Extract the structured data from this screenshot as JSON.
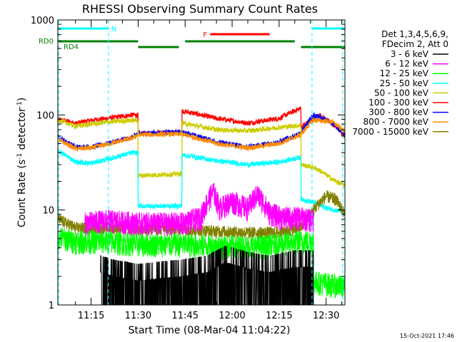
{
  "chart_data": {
    "type": "line",
    "title": "RHESSI Observing Summary Count Rates",
    "xlabel": "Start Time (08-Mar-04 11:04:22)",
    "ylabel_main": "Count Rate (s",
    "ylabel_sup1": "-1",
    "ylabel_mid": " detector",
    "ylabel_sup2": "-1",
    "ylabel_end": ")",
    "yscale": "log",
    "ylim": [
      1,
      1000
    ],
    "xlim_min": [
      4.37,
      96.0
    ],
    "x_ticks": [
      {
        "t": 15,
        "label": "11:15"
      },
      {
        "t": 30,
        "label": "11:30"
      },
      {
        "t": 45,
        "label": "11:45"
      },
      {
        "t": 60,
        "label": "12:00"
      },
      {
        "t": 75,
        "label": "12:15"
      },
      {
        "t": 90,
        "label": "12:30"
      }
    ],
    "y_ticks": [
      {
        "v": 1,
        "label": "1"
      },
      {
        "v": 10,
        "label": "10"
      },
      {
        "v": 100,
        "label": "100"
      },
      {
        "v": 1000,
        "label": "1000"
      }
    ],
    "legend": {
      "header1": "Det 1,3,4,5,6,9,",
      "header2": "FDecim 2, Att 0",
      "entries": [
        {
          "label": "3 - 6 keV",
          "color": "#000000"
        },
        {
          "label": "6 - 12 keV",
          "color": "#ff00ff"
        },
        {
          "label": "12 - 25 keV",
          "color": "#00ff00"
        },
        {
          "label": "25 - 50 keV",
          "color": "#00ffff"
        },
        {
          "label": "50 - 100 keV",
          "color": "#cccc00"
        },
        {
          "label": "100 - 300 keV",
          "color": "#ff0000"
        },
        {
          "label": "300 - 800 keV",
          "color": "#0000ff"
        },
        {
          "label": "800 - 7000 keV",
          "color": "#ff8c00"
        },
        {
          "label": "7000 - 15000 keV",
          "color": "#808000"
        }
      ]
    },
    "flags": {
      "N": {
        "label": "N",
        "color": "#00ffff",
        "segments": [
          [
            4.4,
            20.5
          ],
          [
            85.5,
            96.0
          ]
        ]
      },
      "F": {
        "label": "F",
        "color": "#ff0000",
        "segments": [
          [
            53,
            72
          ]
        ]
      },
      "RD0": {
        "label": "RD0",
        "color": "#008000",
        "segments": [
          [
            4.4,
            30
          ],
          [
            45,
            80
          ]
        ]
      },
      "RD4": {
        "label": "RD4",
        "color": "#008000",
        "segments": [
          [
            30,
            43
          ],
          [
            82,
            96.0
          ]
        ]
      }
    },
    "night_lines": [
      4.6,
      20.5,
      85.5,
      95.3
    ],
    "series": [
      {
        "color": "#ff0000",
        "level": [
          [
            4.5,
            90
          ],
          [
            10,
            82
          ],
          [
            15,
            88
          ],
          [
            20,
            92
          ],
          [
            28,
            100
          ],
          [
            30,
            100
          ],
          [
            30.1,
            64
          ],
          [
            44,
            66
          ],
          [
            44.1,
            110
          ],
          [
            55,
            92
          ],
          [
            65,
            82
          ],
          [
            75,
            92
          ],
          [
            82,
            118
          ],
          [
            82.1,
            75
          ],
          [
            88,
            100
          ],
          [
            92,
            80
          ],
          [
            96,
            60
          ]
        ]
      },
      {
        "color": "#0000ff",
        "level": [
          [
            4.5,
            58
          ],
          [
            10,
            46
          ],
          [
            15,
            46
          ],
          [
            20,
            50
          ],
          [
            28,
            58
          ],
          [
            30,
            64
          ],
          [
            44,
            66
          ],
          [
            55,
            52
          ],
          [
            65,
            46
          ],
          [
            75,
            52
          ],
          [
            82,
            64
          ],
          [
            86,
            100
          ],
          [
            92,
            82
          ],
          [
            96,
            62
          ]
        ]
      },
      {
        "color": "#ff8c00",
        "level": [
          [
            4.5,
            55
          ],
          [
            10,
            44
          ],
          [
            15,
            45
          ],
          [
            20,
            49
          ],
          [
            28,
            57
          ],
          [
            30,
            62
          ],
          [
            44,
            63
          ],
          [
            55,
            50
          ],
          [
            65,
            45
          ],
          [
            75,
            50
          ],
          [
            82,
            62
          ],
          [
            86,
            88
          ],
          [
            92,
            85
          ],
          [
            96,
            66
          ]
        ]
      },
      {
        "color": "#cccc00",
        "level": [
          [
            4.5,
            88
          ],
          [
            10,
            76
          ],
          [
            15,
            80
          ],
          [
            20,
            84
          ],
          [
            28,
            88
          ],
          [
            30,
            88
          ],
          [
            30.1,
            23
          ],
          [
            44,
            24
          ],
          [
            44.1,
            82
          ],
          [
            55,
            70
          ],
          [
            65,
            68
          ],
          [
            75,
            74
          ],
          [
            82,
            78
          ],
          [
            82.1,
            30
          ],
          [
            86,
            28
          ],
          [
            88,
            26
          ],
          [
            92,
            21
          ],
          [
            96,
            18
          ]
        ]
      },
      {
        "color": "#00ffff",
        "level": [
          [
            4.5,
            42
          ],
          [
            10,
            32
          ],
          [
            15,
            31
          ],
          [
            20,
            34
          ],
          [
            28,
            40
          ],
          [
            30,
            40
          ],
          [
            30.1,
            11
          ],
          [
            44,
            11
          ],
          [
            44.1,
            38
          ],
          [
            55,
            33
          ],
          [
            65,
            30
          ],
          [
            75,
            32
          ],
          [
            82,
            36
          ],
          [
            82.1,
            13
          ],
          [
            86,
            12
          ],
          [
            90,
            10.5
          ],
          [
            96,
            9.5
          ]
        ]
      },
      {
        "color": "#808000",
        "level": [
          [
            4.5,
            8
          ],
          [
            10,
            6.5
          ],
          [
            20,
            6.5
          ],
          [
            30,
            6.3
          ],
          [
            44,
            6.3
          ],
          [
            55,
            6
          ],
          [
            65,
            5.8
          ],
          [
            75,
            5.8
          ],
          [
            82,
            6.5
          ],
          [
            86,
            10
          ],
          [
            90,
            14
          ],
          [
            93,
            13
          ],
          [
            96,
            9
          ]
        ]
      },
      {
        "color": "#ff00ff",
        "level": [
          [
            13,
            7
          ],
          [
            20,
            7.5
          ],
          [
            30,
            7
          ],
          [
            44,
            7
          ],
          [
            50,
            8
          ],
          [
            54,
            15
          ],
          [
            56,
            10
          ],
          [
            60,
            12
          ],
          [
            65,
            10
          ],
          [
            68,
            14
          ],
          [
            72,
            9
          ],
          [
            76,
            8
          ],
          [
            82,
            8
          ],
          [
            86,
            7.5
          ]
        ]
      },
      {
        "color": "#00ff00",
        "level": [
          [
            4.5,
            5
          ],
          [
            10,
            4.5
          ],
          [
            20,
            4.5
          ],
          [
            30,
            4.2
          ],
          [
            44,
            4.2
          ],
          [
            55,
            4
          ],
          [
            70,
            4
          ],
          [
            82,
            4.5
          ],
          [
            86,
            4.5
          ],
          [
            86.1,
            1.7
          ],
          [
            96,
            1.5
          ]
        ]
      },
      {
        "color": "#000000",
        "level": [
          [
            18,
            2.2
          ],
          [
            22,
            2
          ],
          [
            30,
            1.8
          ],
          [
            44,
            2
          ],
          [
            52,
            2.2
          ],
          [
            58,
            2.8
          ],
          [
            65,
            2.4
          ],
          [
            72,
            2.2
          ],
          [
            80,
            2.5
          ],
          [
            86,
            2.5
          ]
        ]
      }
    ]
  },
  "timestamp": "15-Oct-2021 17:46"
}
